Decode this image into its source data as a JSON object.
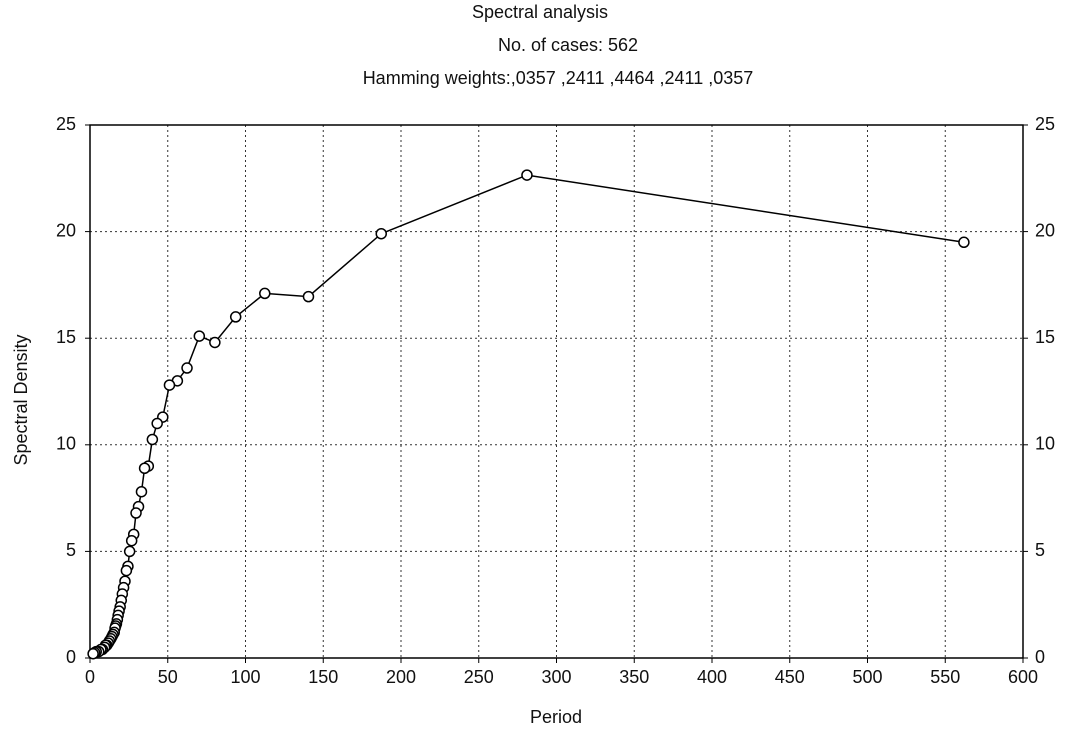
{
  "chart_data": {
    "type": "line",
    "title": "Spectral analysis",
    "subtitle": "No. of cases: 562",
    "annotation": "Hamming weights:,0357 ,2411 ,4464 ,2411 ,0357",
    "xlabel": "Period",
    "ylabel": "Spectral Density",
    "x": [
      562,
      281,
      187.3,
      140.5,
      112.4,
      93.7,
      80.3,
      70.3,
      62.4,
      56.2,
      51.1,
      46.8,
      43.2,
      40.1,
      37.5,
      35.1,
      33.1,
      31.2,
      29.6,
      28.1,
      26.8,
      25.5,
      24.4,
      23.4,
      22.5,
      21.6,
      20.8,
      20.1,
      19.4,
      18.7,
      18.1,
      17.6,
      17.0,
      16.5,
      16.1,
      15.6,
      14.8,
      14.1,
      13.4,
      12.5,
      11.7,
      10.8,
      10.0,
      9.4,
      8.0,
      7.0,
      5.6,
      4.0,
      3.0,
      2.0
    ],
    "series": [
      {
        "name": "Spectral Density",
        "color": "#000000",
        "values": [
          19.5,
          22.65,
          19.9,
          16.95,
          17.1,
          16.0,
          14.8,
          15.1,
          13.6,
          13.0,
          12.8,
          11.3,
          11.0,
          10.25,
          9.0,
          8.9,
          7.8,
          7.1,
          6.8,
          5.8,
          5.5,
          5.0,
          4.3,
          4.1,
          3.6,
          3.3,
          3.0,
          2.7,
          2.4,
          2.2,
          2.0,
          1.8,
          1.6,
          1.5,
          1.4,
          1.2,
          1.1,
          1.0,
          0.9,
          0.8,
          0.7,
          0.6,
          0.6,
          0.5,
          0.4,
          0.4,
          0.3,
          0.3,
          0.25,
          0.2
        ]
      }
    ],
    "xlim": [
      0,
      600
    ],
    "xticks": [
      0,
      50,
      100,
      150,
      200,
      250,
      300,
      350,
      400,
      450,
      500,
      550,
      600
    ],
    "ylim": [
      0,
      25
    ],
    "yticks": [
      0,
      5,
      10,
      15,
      20,
      25
    ],
    "grid": true,
    "marker": "circle"
  }
}
